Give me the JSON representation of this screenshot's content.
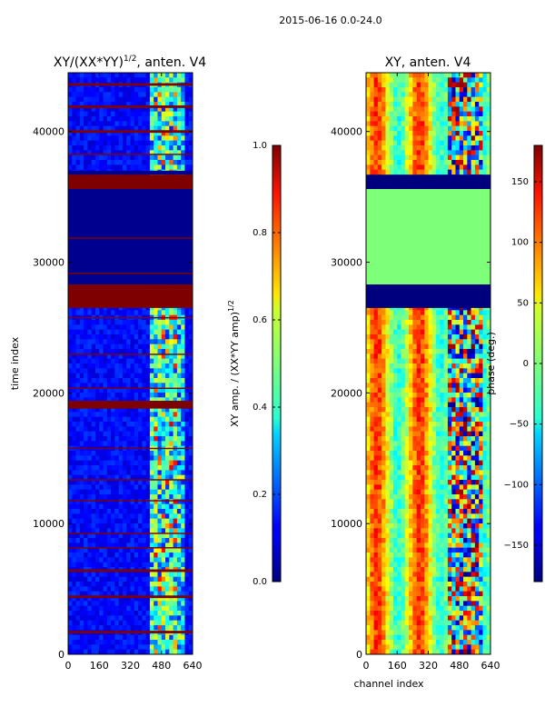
{
  "suptitle": "2015-06-16 0.0-24.0",
  "chart_data": [
    {
      "type": "heatmap",
      "title_main": "XY/(XX*YY)",
      "title_sup": "1/2",
      "title_tail": ", anten. V4",
      "xlabel": "",
      "ylabel": "time index",
      "xlim": [
        0,
        640
      ],
      "ylim": [
        0,
        44500
      ],
      "x_ticks": [
        0,
        160,
        320,
        480,
        640
      ],
      "y_ticks": [
        0,
        10000,
        20000,
        30000,
        40000
      ],
      "x_tick_labels": [
        "0",
        "160",
        "320",
        "480",
        "640"
      ],
      "y_tick_labels": [
        "0",
        "10000",
        "20000",
        "30000",
        "40000"
      ],
      "colorbar": {
        "label_main": "XY amp. / (XX*YY amp)",
        "label_sup": "1/2",
        "range": [
          0.0,
          1.0
        ],
        "ticks": [
          0.0,
          0.2,
          0.4,
          0.6,
          0.8,
          1.0
        ],
        "tick_labels": [
          "0.0",
          "0.2",
          "0.4",
          "0.6",
          "0.8",
          "1.0"
        ]
      },
      "flagged_rows": [
        [
          35600,
          36700
        ],
        [
          26500,
          28300
        ],
        [
          18800,
          19400
        ],
        [
          6300,
          6500
        ],
        [
          4300,
          4500
        ],
        [
          1600,
          1800
        ],
        [
          41800,
          42000
        ],
        [
          39900,
          40100
        ],
        [
          43500,
          43700
        ],
        [
          31800,
          31900
        ],
        [
          22900,
          23000
        ],
        [
          11700,
          11800
        ],
        [
          9200,
          9300
        ],
        [
          15700,
          15800
        ],
        [
          13300,
          13400
        ],
        [
          20300,
          20400
        ],
        [
          38200,
          38300
        ],
        [
          29100,
          29200
        ],
        [
          25700,
          25800
        ],
        [
          8100,
          8200
        ]
      ],
      "zero_blocks": [
        [
          28300,
          35600
        ],
        [
          36700,
          37000
        ]
      ]
    },
    {
      "type": "heatmap",
      "title_main": "XY, anten. V4",
      "xlabel": "channel index",
      "ylabel": "",
      "xlim": [
        0,
        640
      ],
      "ylim": [
        0,
        44500
      ],
      "x_ticks": [
        0,
        160,
        320,
        480,
        640
      ],
      "y_ticks": [
        0,
        10000,
        20000,
        30000,
        40000
      ],
      "x_tick_labels": [
        "0",
        "160",
        "320",
        "480",
        "640"
      ],
      "y_tick_labels": [
        "0",
        "10000",
        "20000",
        "30000",
        "40000"
      ],
      "colorbar": {
        "label_main": "phase (deg.)",
        "range": [
          -180,
          180
        ],
        "ticks": [
          -150,
          -100,
          -50,
          0,
          50,
          100,
          150
        ],
        "tick_labels": [
          "−150",
          "−100",
          "−50",
          "0",
          "50",
          "100",
          "150"
        ]
      },
      "flagged_rows": [
        [
          35600,
          36700
        ],
        [
          26500,
          28300
        ]
      ],
      "zero_blocks": [
        [
          28300,
          35600
        ]
      ]
    }
  ]
}
